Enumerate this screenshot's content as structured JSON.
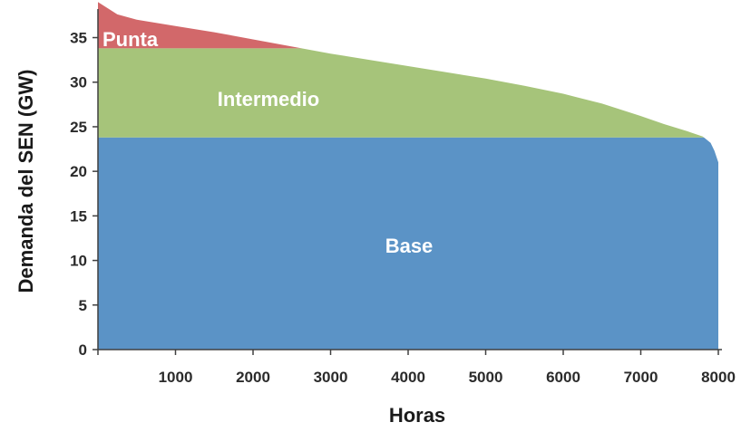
{
  "chart_data": {
    "type": "area",
    "title": "",
    "xlabel": "Horas",
    "ylabel": "Demanda del SEN (GW)",
    "xlim": [
      0,
      8000
    ],
    "ylim": [
      0,
      38
    ],
    "x_ticks": [
      1000,
      2000,
      3000,
      4000,
      5000,
      6000,
      7000,
      8000
    ],
    "y_ticks": [
      0,
      5,
      10,
      15,
      20,
      25,
      30,
      35
    ],
    "grid": false,
    "legend": "none",
    "demand_curve": {
      "x": [
        0,
        250,
        500,
        1000,
        1500,
        2000,
        2500,
        3000,
        3500,
        4000,
        4500,
        5000,
        5500,
        6000,
        6500,
        7000,
        7300,
        7600,
        7800,
        7900,
        7950,
        8000,
        8000
      ],
      "y": [
        39,
        37.6,
        37.0,
        36.3,
        35.6,
        34.8,
        34.0,
        33.2,
        32.5,
        31.8,
        31.1,
        30.4,
        29.6,
        28.7,
        27.6,
        26.2,
        25.3,
        24.5,
        23.9,
        23.2,
        22.3,
        21,
        0
      ]
    },
    "series": [
      {
        "name": "Base",
        "lower": 0,
        "upper": 23.8,
        "color": "#5b93c6"
      },
      {
        "name": "Intermedio",
        "lower": 23.8,
        "upper": 33.8,
        "color": "#a6c47a"
      },
      {
        "name": "Punta",
        "lower": 33.8,
        "upper": null,
        "color": "#d2686a"
      }
    ],
    "labels": {
      "base": "Base",
      "intermedio": "Intermedio",
      "punta": "Punta"
    }
  }
}
